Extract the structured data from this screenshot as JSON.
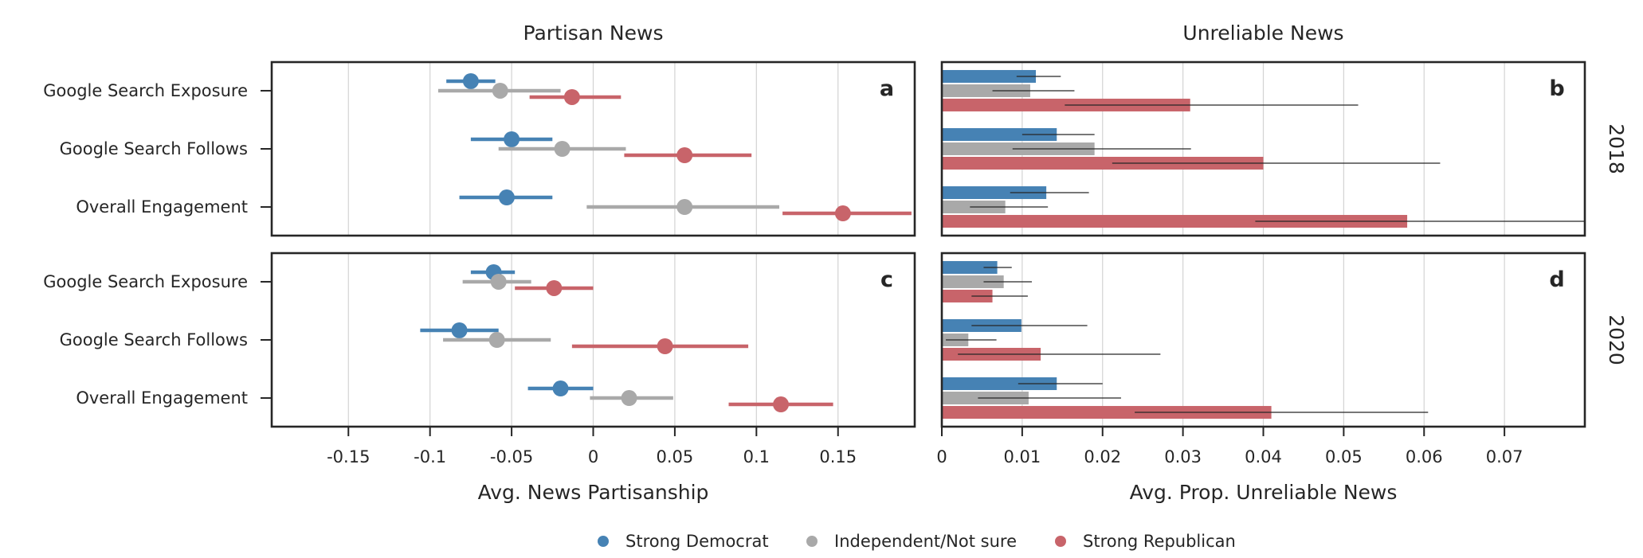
{
  "colors": {
    "Strong Democrat": "#4682b4",
    "Independent/Not sure": "#a9a9a9",
    "Strong Republican": "#c8646a"
  },
  "legend": [
    "Strong Democrat",
    "Independent/Not sure",
    "Strong Republican"
  ],
  "chart_data": [
    {
      "panel": "a",
      "type": "scatter",
      "column_title": "Partisan News",
      "row_label": "2018",
      "xlabel": "Avg. News Partisanship",
      "xlim": [
        -0.197,
        0.197
      ],
      "xticks": [
        -0.15,
        -0.1,
        -0.05,
        0,
        0.05,
        0.1,
        0.15
      ],
      "xtick_labels": [
        "-0.15",
        "-0.1",
        "-0.05",
        "0",
        "0.05",
        "0.1",
        "0.15"
      ],
      "grid": "vertical",
      "categories": [
        "Google Search Exposure",
        "Google Search Follows",
        "Overall Engagement"
      ],
      "series": [
        {
          "name": "Strong Democrat",
          "values": [
            -0.075,
            -0.05,
            -0.053
          ],
          "ci_low": [
            -0.09,
            -0.075,
            -0.082
          ],
          "ci_high": [
            -0.06,
            -0.025,
            -0.025
          ]
        },
        {
          "name": "Independent/Not sure",
          "values": [
            -0.057,
            -0.019,
            0.056
          ],
          "ci_low": [
            -0.095,
            -0.058,
            -0.004
          ],
          "ci_high": [
            -0.02,
            0.02,
            0.114
          ]
        },
        {
          "name": "Strong Republican",
          "values": [
            -0.013,
            0.056,
            0.153
          ],
          "ci_low": [
            -0.039,
            0.019,
            0.116
          ],
          "ci_high": [
            0.017,
            0.097,
            0.195
          ]
        }
      ]
    },
    {
      "panel": "b",
      "type": "bar",
      "column_title": "Unreliable News",
      "row_label": "2018",
      "xlabel": "Avg. Prop. Unreliable News",
      "xlim": [
        0,
        0.08
      ],
      "xticks": [
        0,
        0.01,
        0.02,
        0.03,
        0.04,
        0.05,
        0.06,
        0.07
      ],
      "xtick_labels": [
        "0",
        "0.01",
        "0.02",
        "0.03",
        "0.04",
        "0.05",
        "0.06",
        "0.07"
      ],
      "grid": "vertical",
      "categories": [
        "Google Search Exposure",
        "Google Search Follows",
        "Overall Engagement"
      ],
      "series": [
        {
          "name": "Strong Democrat",
          "values": [
            0.0117,
            0.0143,
            0.013
          ],
          "ci_low": [
            0.0093,
            0.01,
            0.0085
          ],
          "ci_high": [
            0.0148,
            0.019,
            0.0183
          ]
        },
        {
          "name": "Independent/Not sure",
          "values": [
            0.011,
            0.019,
            0.0079
          ],
          "ci_low": [
            0.0063,
            0.0088,
            0.0035
          ],
          "ci_high": [
            0.0165,
            0.031,
            0.0132
          ]
        },
        {
          "name": "Strong Republican",
          "values": [
            0.0309,
            0.04,
            0.0579
          ],
          "ci_low": [
            0.0153,
            0.0212,
            0.039
          ],
          "ci_high": [
            0.0518,
            0.062,
            0.0801
          ]
        }
      ]
    },
    {
      "panel": "c",
      "type": "scatter",
      "column_title": "Partisan News",
      "row_label": "2020",
      "xlabel": "Avg. News Partisanship",
      "xlim": [
        -0.197,
        0.197
      ],
      "xticks": [
        -0.15,
        -0.1,
        -0.05,
        0,
        0.05,
        0.1,
        0.15
      ],
      "xtick_labels": [
        "-0.15",
        "-0.1",
        "-0.05",
        "0",
        "0.05",
        "0.1",
        "0.15"
      ],
      "grid": "vertical",
      "categories": [
        "Google Search Exposure",
        "Google Search Follows",
        "Overall Engagement"
      ],
      "series": [
        {
          "name": "Strong Democrat",
          "values": [
            -0.061,
            -0.082,
            -0.02
          ],
          "ci_low": [
            -0.075,
            -0.106,
            -0.04
          ],
          "ci_high": [
            -0.048,
            -0.058,
            0
          ]
        },
        {
          "name": "Independent/Not sure",
          "values": [
            -0.058,
            -0.059,
            0.022
          ],
          "ci_low": [
            -0.08,
            -0.092,
            -0.002
          ],
          "ci_high": [
            -0.038,
            -0.026,
            0.049
          ]
        },
        {
          "name": "Strong Republican",
          "values": [
            -0.024,
            0.044,
            0.115
          ],
          "ci_low": [
            -0.048,
            -0.013,
            0.083
          ],
          "ci_high": [
            0,
            0.095,
            0.147
          ]
        }
      ]
    },
    {
      "panel": "d",
      "type": "bar",
      "column_title": "Unreliable News",
      "row_label": "2020",
      "xlabel": "Avg. Prop. Unreliable News",
      "xlim": [
        0,
        0.08
      ],
      "xticks": [
        0,
        0.01,
        0.02,
        0.03,
        0.04,
        0.05,
        0.06,
        0.07
      ],
      "xtick_labels": [
        "0",
        "0.01",
        "0.02",
        "0.03",
        "0.04",
        "0.05",
        "0.06",
        "0.07"
      ],
      "grid": "vertical",
      "categories": [
        "Google Search Exposure",
        "Google Search Follows",
        "Overall Engagement"
      ],
      "series": [
        {
          "name": "Strong Democrat",
          "values": [
            0.0069,
            0.0099,
            0.0143
          ],
          "ci_low": [
            0.0052,
            0.0037,
            0.0095
          ],
          "ci_high": [
            0.0087,
            0.0181,
            0.02
          ]
        },
        {
          "name": "Independent/Not sure",
          "values": [
            0.0077,
            0.0033,
            0.0108
          ],
          "ci_low": [
            0.0052,
            0.0005,
            0.0045
          ],
          "ci_high": [
            0.0112,
            0.0068,
            0.0223
          ]
        },
        {
          "name": "Strong Republican",
          "values": [
            0.0063,
            0.0123,
            0.041
          ],
          "ci_low": [
            0.0037,
            0.002,
            0.024
          ],
          "ci_high": [
            0.0107,
            0.0272,
            0.0605
          ]
        }
      ]
    }
  ]
}
